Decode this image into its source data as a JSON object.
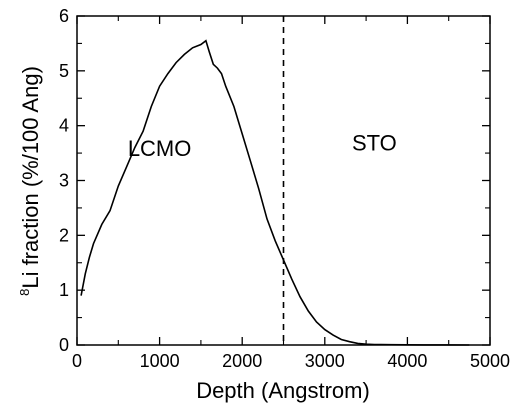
{
  "chart_data": {
    "type": "line",
    "xlabel": "Depth (Angstrom)",
    "ylabel_sup": "8",
    "ylabel": "Li fraction (%/100 Ang)",
    "xlim": [
      0,
      5000
    ],
    "ylim": [
      0,
      6
    ],
    "x_ticks": [
      0,
      1000,
      2000,
      3000,
      4000,
      5000
    ],
    "y_ticks": [
      0,
      1,
      2,
      3,
      4,
      5,
      6
    ],
    "grid": false,
    "series": [
      {
        "x": [
          50,
          100,
          150,
          200,
          300,
          400,
          500,
          600,
          700,
          800,
          900,
          1000,
          1100,
          1200,
          1300,
          1400,
          1500,
          1560,
          1600,
          1650,
          1700,
          1750,
          1800,
          1900,
          2000,
          2100,
          2200,
          2300,
          2400,
          2500,
          2600,
          2700,
          2800,
          2900,
          3000,
          3100,
          3200,
          3300,
          3400,
          3500,
          3600,
          3800,
          4000,
          4200,
          4500,
          4750
        ],
        "y": [
          0.9,
          1.3,
          1.6,
          1.85,
          2.2,
          2.45,
          2.9,
          3.25,
          3.6,
          3.9,
          4.35,
          4.72,
          4.95,
          5.15,
          5.3,
          5.42,
          5.48,
          5.55,
          5.35,
          5.12,
          5.05,
          4.95,
          4.72,
          4.35,
          3.85,
          3.35,
          2.85,
          2.3,
          1.9,
          1.55,
          1.2,
          0.88,
          0.62,
          0.42,
          0.28,
          0.18,
          0.1,
          0.06,
          0.03,
          0.015,
          0.01,
          0.005,
          0.003,
          0.002,
          0.001,
          0.0
        ]
      }
    ],
    "vlines": [
      {
        "x": 2500,
        "style": "dashed"
      }
    ],
    "annotations": [
      {
        "text": "LCMO",
        "x": 1000,
        "y": 3.45
      },
      {
        "text": "STO",
        "x": 3600,
        "y": 3.55
      }
    ]
  }
}
